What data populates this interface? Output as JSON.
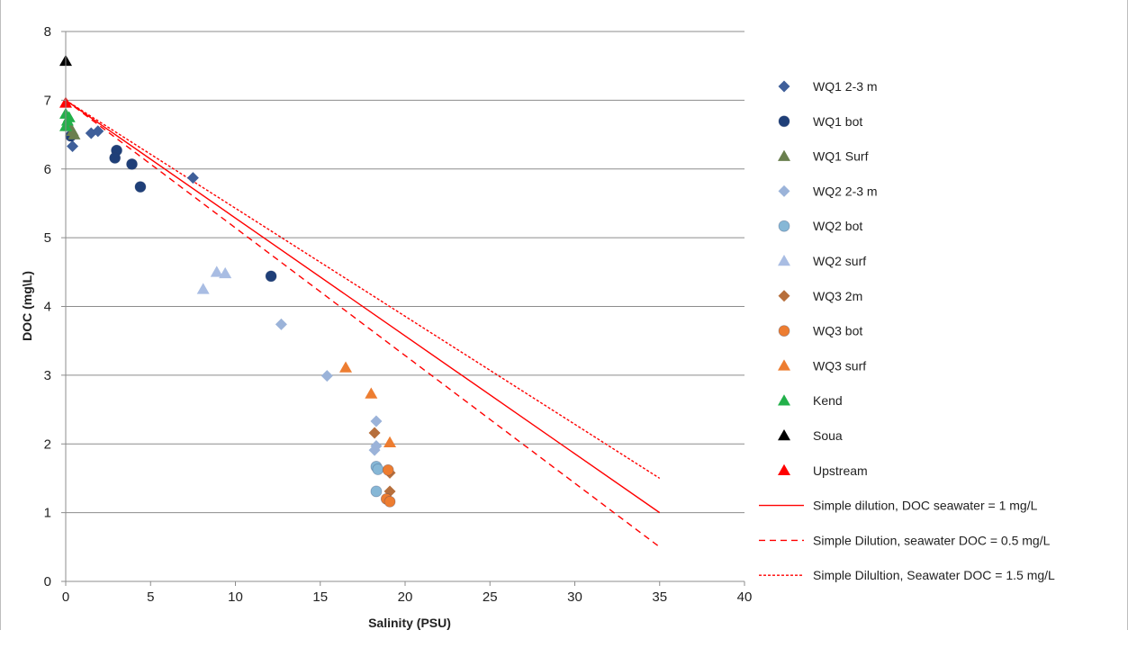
{
  "chart_data": {
    "type": "scatter",
    "title": "",
    "xlabel": "Salinity (PSU)",
    "ylabel": "DOC (mg\\L)",
    "xlim": [
      0,
      40
    ],
    "ylim": [
      0,
      8
    ],
    "xticks": [
      0,
      5,
      10,
      15,
      20,
      25,
      30,
      35,
      40
    ],
    "yticks": [
      0,
      1,
      2,
      3,
      4,
      5,
      6,
      7,
      8
    ],
    "grid": "horizontal",
    "legend_position": "right",
    "series": [
      {
        "name": "WQ1 2-3 m",
        "marker": "diamond",
        "color": "#3f5f9a",
        "points": [
          [
            0.4,
            6.33
          ],
          [
            1.5,
            6.52
          ],
          [
            1.9,
            6.55
          ],
          [
            7.5,
            5.87
          ]
        ]
      },
      {
        "name": "WQ1 bot",
        "marker": "circle",
        "color": "#1f3f78",
        "points": [
          [
            0.3,
            6.48
          ],
          [
            3.0,
            6.27
          ],
          [
            2.9,
            6.16
          ],
          [
            3.9,
            6.07
          ],
          [
            4.4,
            5.74
          ],
          [
            12.1,
            4.44
          ]
        ]
      },
      {
        "name": "WQ1 Surf",
        "marker": "triangle",
        "color": "#6a7f4e",
        "points": [
          [
            0.2,
            6.62
          ],
          [
            0.4,
            6.55
          ],
          [
            0.5,
            6.5
          ]
        ]
      },
      {
        "name": "WQ2 2-3 m",
        "marker": "diamond",
        "color": "#9bb3d9",
        "points": [
          [
            12.7,
            3.74
          ],
          [
            15.4,
            2.99
          ],
          [
            18.3,
            2.33
          ],
          [
            18.3,
            1.97
          ],
          [
            18.2,
            1.91
          ]
        ]
      },
      {
        "name": "WQ2 bot",
        "marker": "circle",
        "color": "#86b7d6",
        "points": [
          [
            18.3,
            1.67
          ],
          [
            18.4,
            1.63
          ],
          [
            18.3,
            1.31
          ]
        ]
      },
      {
        "name": "WQ2 surf",
        "marker": "triangle",
        "color": "#a9bde3",
        "points": [
          [
            8.1,
            4.25
          ],
          [
            8.9,
            4.5
          ],
          [
            9.4,
            4.48
          ]
        ]
      },
      {
        "name": "WQ3 2m",
        "marker": "diamond",
        "color": "#b76f3c",
        "points": [
          [
            18.2,
            2.16
          ],
          [
            19.1,
            1.58
          ],
          [
            19.1,
            1.31
          ]
        ]
      },
      {
        "name": "WQ3 bot",
        "marker": "circle",
        "color": "#ed7d31",
        "points": [
          [
            19.0,
            1.62
          ],
          [
            18.9,
            1.2
          ],
          [
            19.1,
            1.16
          ]
        ]
      },
      {
        "name": "WQ3 surf",
        "marker": "triangle",
        "color": "#ed7d31",
        "points": [
          [
            16.5,
            3.11
          ],
          [
            18.0,
            2.73
          ],
          [
            19.1,
            2.02
          ]
        ]
      },
      {
        "name": "Kend",
        "marker": "triangle",
        "color": "#22b04a",
        "points": [
          [
            0.0,
            6.62
          ],
          [
            0.1,
            6.7
          ],
          [
            0.2,
            6.75
          ],
          [
            0.0,
            6.8
          ]
        ]
      },
      {
        "name": "Soua",
        "marker": "triangle",
        "color": "#000000",
        "points": [
          [
            0.0,
            7.57
          ]
        ]
      },
      {
        "name": "Upstream",
        "marker": "triangle",
        "color": "#ff0000",
        "points": [
          [
            0.0,
            6.96
          ]
        ]
      },
      {
        "name": "Simple dilution, DOC seawater = 1 mg/L",
        "line": "solid",
        "color": "#ff0000",
        "points": [
          [
            0,
            7.0
          ],
          [
            35,
            1.0
          ]
        ]
      },
      {
        "name": "Simple Dilution, seawater DOC = 0.5 mg/L",
        "line": "dashed",
        "color": "#ff0000",
        "points": [
          [
            0,
            7.0
          ],
          [
            35,
            0.5
          ]
        ]
      },
      {
        "name": "Simple Dilultion, Seawater DOC = 1.5 mg/L",
        "line": "dotted",
        "color": "#ff0000",
        "points": [
          [
            0,
            7.0
          ],
          [
            35,
            1.5
          ]
        ]
      }
    ]
  }
}
